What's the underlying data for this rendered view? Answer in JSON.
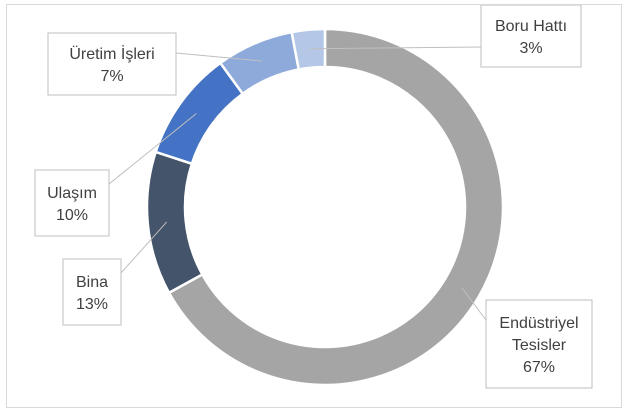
{
  "chart_data": {
    "type": "pie",
    "donut": true,
    "title": "",
    "start_angle_deg": 0,
    "direction": "clockwise",
    "slices": [
      {
        "label": "Endüstriyel Tesisler",
        "display_lines": [
          "Endüstriyel",
          "Tesisler"
        ],
        "value": 67,
        "value_label": "67%",
        "color": "#a5a5a5"
      },
      {
        "label": "Bina",
        "display_lines": [
          "Bina"
        ],
        "value": 13,
        "value_label": "13%",
        "color": "#44546a"
      },
      {
        "label": "Ulaşım",
        "display_lines": [
          "Ulaşım"
        ],
        "value": 10,
        "value_label": "10%",
        "color": "#4472c4"
      },
      {
        "label": "Üretim İşleri",
        "display_lines": [
          "Üretim İşleri"
        ],
        "value": 7,
        "value_label": "7%",
        "color": "#8eaadb"
      },
      {
        "label": "Boru Hattı",
        "display_lines": [
          "Boru Hattı"
        ],
        "value": 3,
        "value_label": "3%",
        "color": "#b4c7e7"
      }
    ],
    "legend": "none",
    "data_labels": "callout"
  }
}
